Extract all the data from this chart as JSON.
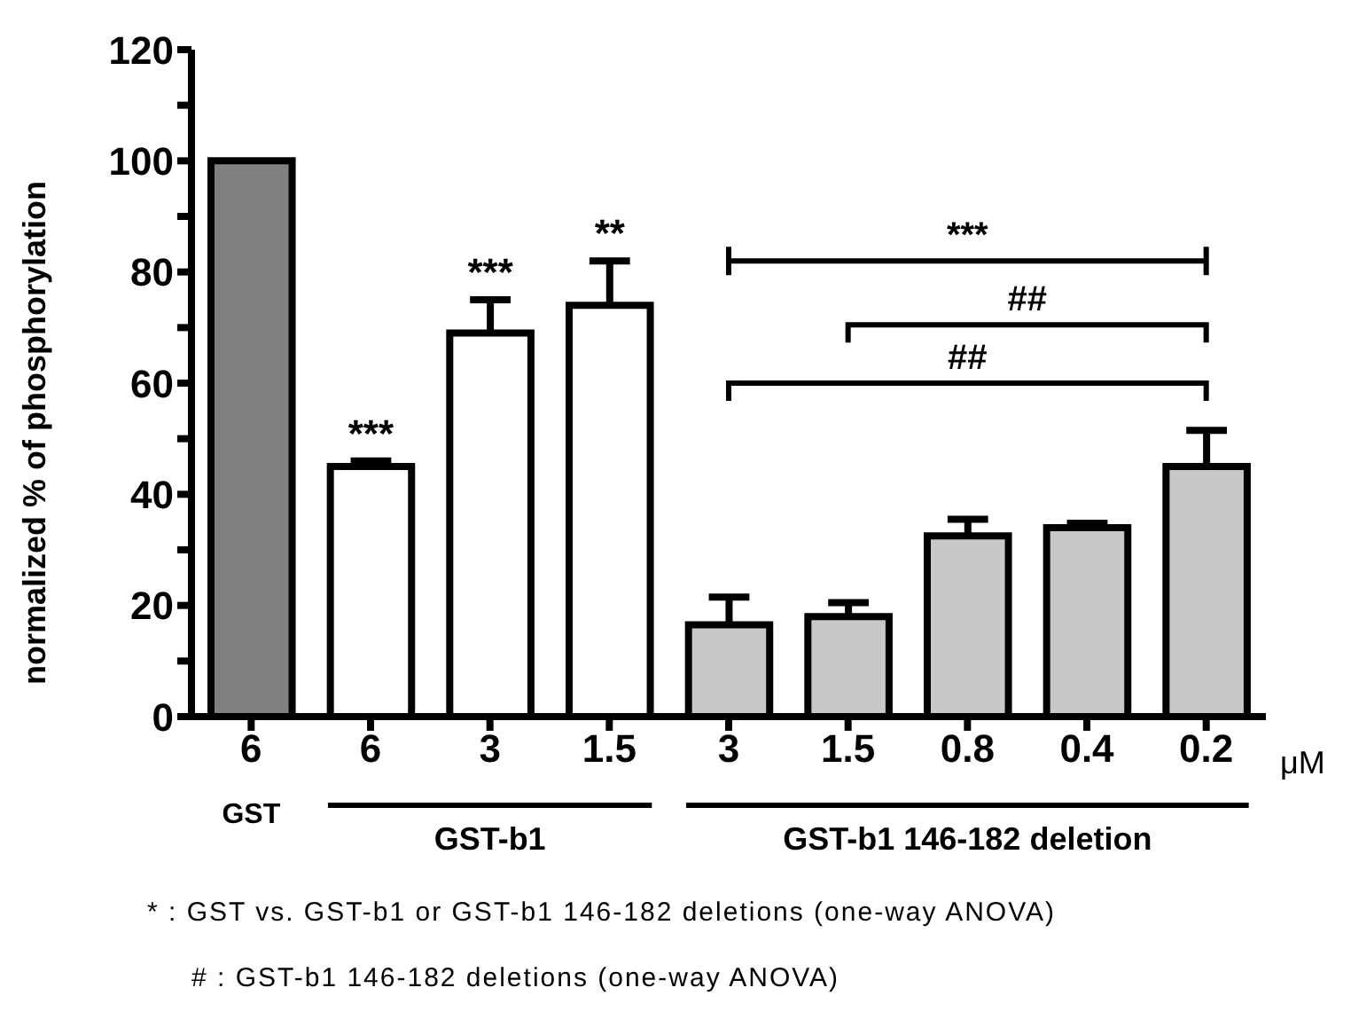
{
  "chart_data": {
    "type": "bar",
    "ylabel": "normalized % of phosphorylation",
    "categories": [
      "6",
      "6",
      "3",
      "1.5",
      "3",
      "1.5",
      "0.8",
      "0.4",
      "0.2"
    ],
    "values": [
      100,
      45,
      69,
      74,
      16.5,
      18,
      32.5,
      34,
      45
    ],
    "colors": [
      "#808080",
      "#ffffff",
      "#ffffff",
      "#ffffff",
      "#c8c8c8",
      "#c8c8c8",
      "#c8c8c8",
      "#c8c8c8",
      "#c8c8c8"
    ],
    "errors": [
      null,
      [
        45,
        46
      ],
      [
        69,
        75
      ],
      [
        74,
        82
      ],
      [
        16.5,
        21.5
      ],
      [
        18,
        20.5
      ],
      [
        32.5,
        35.5
      ],
      [
        34,
        34.8
      ],
      [
        45,
        51.5
      ]
    ],
    "value_labels": [
      null,
      "***",
      "***",
      "**",
      null,
      null,
      null,
      null,
      null
    ],
    "ylim": [
      0,
      120
    ],
    "yticks": [
      0,
      {
        "value": 10,
        "label": null
      },
      20,
      {
        "value": 30,
        "label": null
      },
      40,
      {
        "value": 50,
        "label": null
      },
      60,
      {
        "value": 70,
        "label": null
      },
      80,
      {
        "value": 90,
        "label": null
      },
      100,
      {
        "value": 110,
        "label": null
      },
      120
    ],
    "annotations": [
      "***",
      "##",
      "##",
      "GST",
      "GST-b1",
      "GST-b1 146-182 deletion",
      "μM",
      "* : GST vs. GST-b1 or GST-b1 146-182 deletions (one-way ANOVA)",
      "# : GST-b1 146-182 deletions (one-way ANOVA)"
    ]
  }
}
